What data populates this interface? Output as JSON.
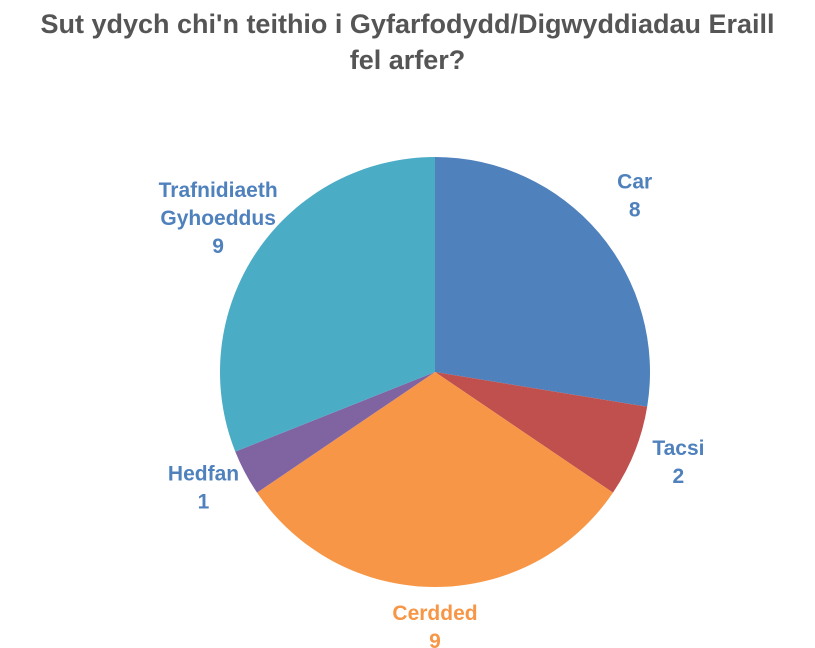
{
  "chart_data": {
    "type": "pie",
    "title": "Sut ydych chi'n teithio i Gyfarfodydd/Digwyddiadau Eraill fel arfer?",
    "categories": [
      "Car",
      "Tacsi",
      "Cerdded",
      "Hedfan",
      "Trafnidiaeth Gyhoeddus"
    ],
    "values": [
      8,
      2,
      9,
      1,
      9
    ],
    "colors": [
      "#4f81bd",
      "#c0504d",
      "#f79646",
      "#8064a2",
      "#4bacc6"
    ],
    "label_colors": [
      "#4f81bd",
      "#4f81bd",
      "#f79646",
      "#4f81bd",
      "#4f81bd"
    ]
  }
}
